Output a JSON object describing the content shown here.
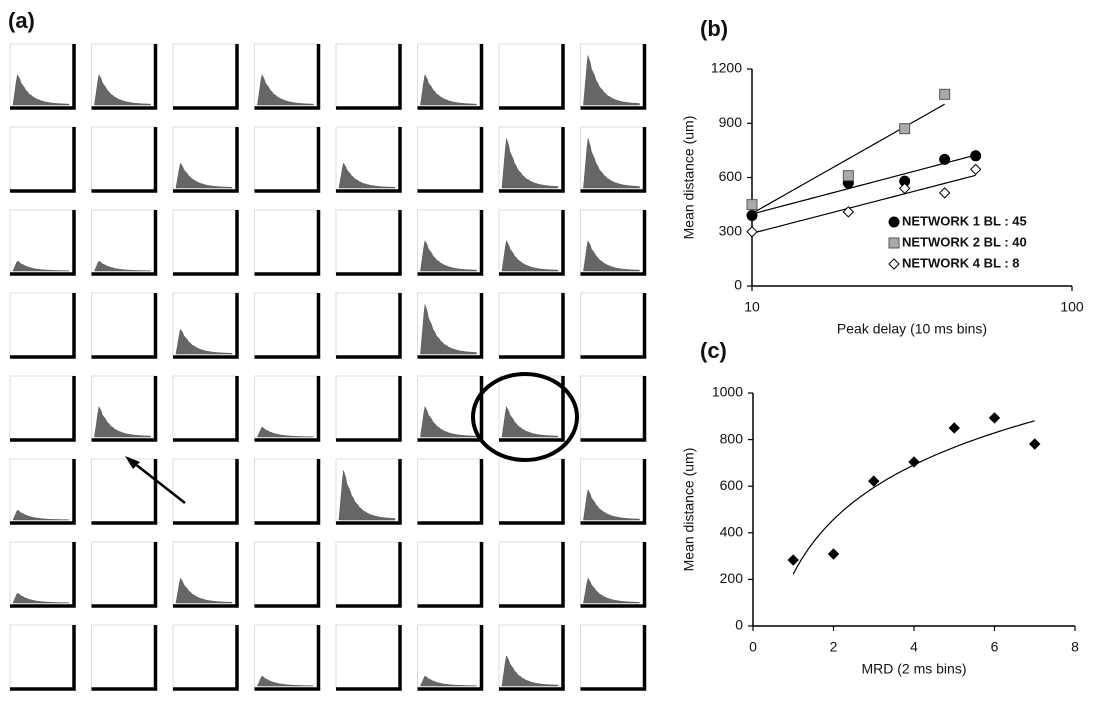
{
  "panel_a": {
    "label": "(a)"
  },
  "chart_data": [
    {
      "type": "scatter",
      "label": "(b)",
      "x_label": "Peak delay  (10 ms bins)",
      "y_label": "Mean distance  (um)",
      "log_x": true,
      "trendline": "linear-log",
      "legend": "lower-right",
      "xlim": [
        10,
        100
      ],
      "xticks": [
        10,
        100
      ],
      "ylim": [
        0,
        1200
      ],
      "yticks": [
        0,
        300,
        600,
        900,
        1200
      ],
      "series": [
        {
          "name": "NETWORK 1  BL : 45",
          "marker": "circle",
          "color": "#000000",
          "x": [
            10,
            20,
            30,
            40,
            50
          ],
          "values": [
            390,
            570,
            580,
            700,
            720
          ]
        },
        {
          "name": "NETWORK 2  BL : 40",
          "marker": "square",
          "color": "#aaaaaa",
          "x": [
            10,
            20,
            30,
            40
          ],
          "values": [
            450,
            610,
            870,
            1060
          ]
        },
        {
          "name": "NETWORK 4  BL : 8",
          "marker": "diamond",
          "color": "#ffffff",
          "x": [
            10,
            20,
            30,
            40,
            50
          ],
          "values": [
            300,
            410,
            540,
            515,
            645
          ]
        }
      ]
    },
    {
      "type": "scatter",
      "label": "(c)",
      "x_label": "MRD  (2 ms bins)",
      "y_label": "Mean distance  (um)",
      "log_x": false,
      "trendline": "log",
      "xlim": [
        0,
        8
      ],
      "xticks": [
        0,
        2,
        4,
        6,
        8
      ],
      "ylim": [
        0,
        1000
      ],
      "yticks": [
        0,
        200,
        400,
        600,
        800,
        1000
      ],
      "series": [
        {
          "marker": "diamond",
          "color": "#000000",
          "x": [
            1,
            2,
            3,
            4,
            5,
            6,
            7
          ],
          "values": [
            283,
            309,
            622,
            704,
            850,
            893,
            781
          ]
        }
      ]
    }
  ]
}
